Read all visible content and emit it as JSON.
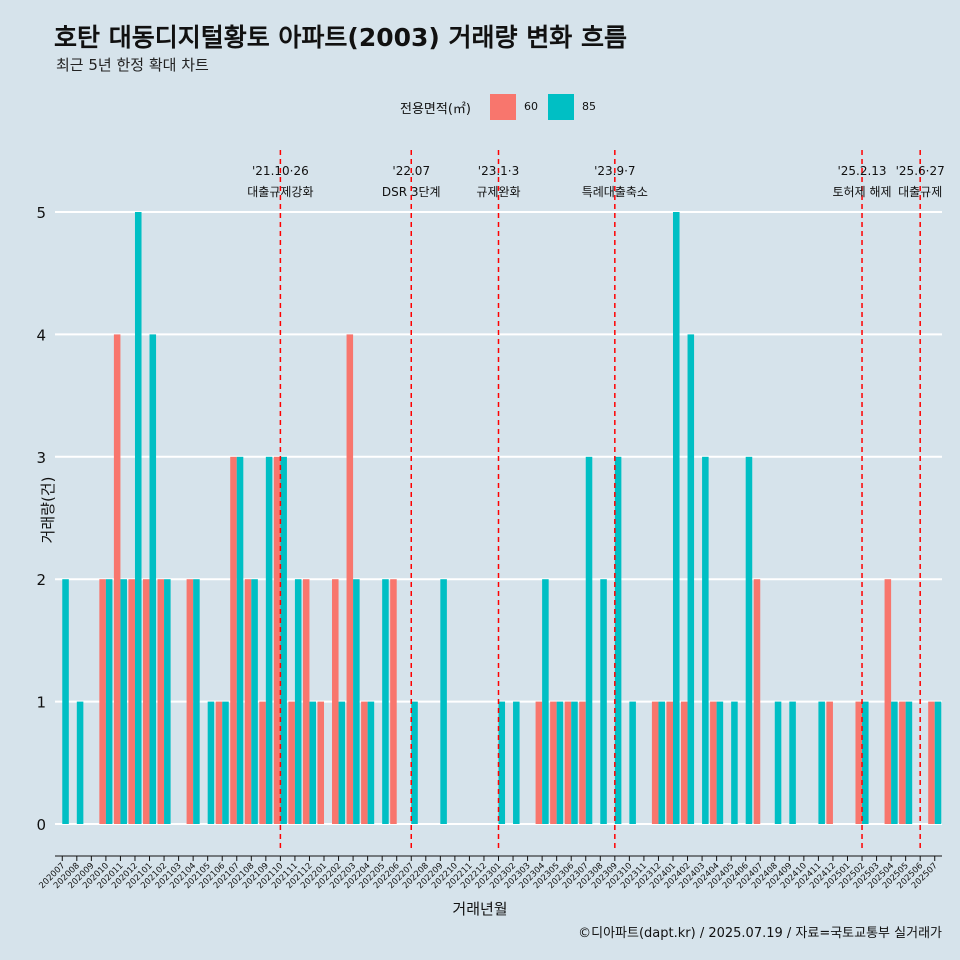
{
  "chart_data": {
    "type": "bar",
    "title": "호탄 대동디지털황토 아파트(2003) 거래량 변화 흐름",
    "subtitle": "최근 5년 한정 확대 차트",
    "xlabel": "거래년월",
    "ylabel": "거래량(건)",
    "ylim": [
      0,
      5
    ],
    "yticks": [
      0,
      1,
      2,
      3,
      4,
      5
    ],
    "grid": true,
    "legend": {
      "title": "전용면적(㎡)",
      "position": "top"
    },
    "categories": [
      "202007",
      "202008",
      "202009",
      "202010",
      "202011",
      "202012",
      "202101",
      "202102",
      "202103",
      "202104",
      "202105",
      "202106",
      "202107",
      "202108",
      "202109",
      "202110",
      "202111",
      "202112",
      "202201",
      "202202",
      "202203",
      "202204",
      "202205",
      "202206",
      "202207",
      "202208",
      "202209",
      "202210",
      "202211",
      "202212",
      "202301",
      "202302",
      "202303",
      "202304",
      "202305",
      "202306",
      "202307",
      "202308",
      "202309",
      "202310",
      "202311",
      "202312",
      "202401",
      "202402",
      "202403",
      "202404",
      "202405",
      "202406",
      "202407",
      "202408",
      "202409",
      "202410",
      "202411",
      "202412",
      "202501",
      "202502",
      "202503",
      "202504",
      "202505",
      "202506",
      "202507"
    ],
    "series": [
      {
        "name": "60",
        "color": "#f8766d",
        "values": [
          0,
          0,
          0,
          2,
          4,
          2,
          2,
          2,
          0,
          2,
          0,
          1,
          3,
          2,
          1,
          3,
          1,
          2,
          1,
          2,
          4,
          1,
          0,
          2,
          0,
          0,
          0,
          0,
          0,
          0,
          0,
          0,
          0,
          1,
          1,
          1,
          1,
          0,
          0,
          0,
          0,
          1,
          1,
          1,
          0,
          1,
          0,
          0,
          2,
          0,
          0,
          0,
          0,
          1,
          0,
          1,
          0,
          2,
          1,
          0,
          1
        ]
      },
      {
        "name": "85",
        "color": "#00bfc4",
        "values": [
          2,
          1,
          0,
          2,
          2,
          5,
          4,
          2,
          0,
          2,
          1,
          1,
          3,
          2,
          3,
          3,
          2,
          1,
          0,
          1,
          2,
          1,
          2,
          0,
          1,
          0,
          2,
          0,
          0,
          0,
          1,
          1,
          0,
          2,
          1,
          1,
          3,
          2,
          3,
          1,
          0,
          1,
          5,
          4,
          3,
          1,
          1,
          3,
          0,
          1,
          1,
          0,
          1,
          0,
          0,
          1,
          0,
          1,
          1,
          0,
          1
        ]
      }
    ],
    "annotations": [
      {
        "date": "'21.10·26",
        "label": "대출규제강화",
        "category": "202110"
      },
      {
        "date": "'22.07",
        "label": "DSR 3단계",
        "category": "202207"
      },
      {
        "date": "'23.1·3",
        "label": "규제완화",
        "category": "202301"
      },
      {
        "date": "'23.9·7",
        "label": "특례대출축소",
        "category": "202309"
      },
      {
        "date": "'25.2.13",
        "label": "토허제 해제",
        "category": "202502"
      },
      {
        "date": "'25.6·27",
        "label": "대출규제",
        "category": "202506"
      }
    ],
    "annotation_color": "#ff0000"
  },
  "caption": "©디아파트(dapt.kr) / 2025.07.19 / 자료=국토교통부 실거래가"
}
